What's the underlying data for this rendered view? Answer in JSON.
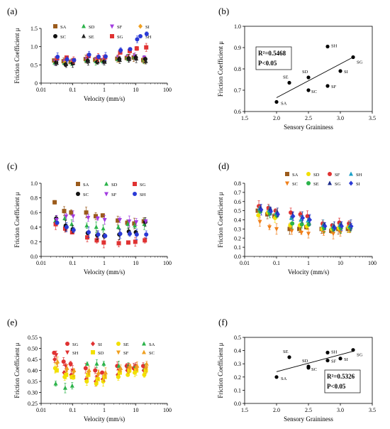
{
  "figure": {
    "panels": [
      "(a)",
      "(b)",
      "(c)",
      "(d)",
      "(e)",
      "(f)"
    ]
  },
  "chart_data": [
    {
      "id": "a",
      "panel_label": "(a)",
      "type": "scatter",
      "xscale": "log",
      "xlabel": "Velocity  (mm/s)",
      "ylabel": "Friction Coefficient μ",
      "xlim": [
        0.01,
        100
      ],
      "ylim": [
        0,
        1.5
      ],
      "xticks": [
        0.01,
        0.1,
        1,
        10,
        100
      ],
      "xtick_labels": [
        "0.01",
        "0.1",
        "1",
        "10",
        "100"
      ],
      "yticks": [
        0,
        0.5,
        1.0,
        1.5
      ],
      "ytick_labels": [
        "0",
        "0.5",
        "1.0",
        "1.5"
      ],
      "x": [
        0.03,
        0.06,
        0.1,
        0.3,
        0.6,
        1,
        3,
        6,
        10,
        20
      ],
      "legend": {
        "columns": 4,
        "position": "top"
      },
      "series": [
        {
          "name": "SA",
          "color": "#9b5b1c",
          "marker": "square",
          "values": [
            0.62,
            0.6,
            0.58,
            0.66,
            0.64,
            0.63,
            0.67,
            0.69,
            0.7,
            0.63
          ]
        },
        {
          "name": "SD",
          "color": "#2bb34a",
          "marker": "triangle-up",
          "values": [
            0.56,
            0.55,
            0.57,
            0.62,
            0.6,
            0.6,
            0.65,
            0.7,
            0.71,
            0.64
          ]
        },
        {
          "name": "SF",
          "color": "#a23be0",
          "marker": "triangle-down",
          "values": [
            0.6,
            0.59,
            0.6,
            0.66,
            0.65,
            0.64,
            0.7,
            0.73,
            0.74,
            0.7
          ]
        },
        {
          "name": "SI",
          "color": "#f0a020",
          "marker": "diamond",
          "values": [
            0.58,
            0.57,
            0.59,
            0.63,
            0.62,
            0.62,
            0.68,
            0.7,
            0.69,
            0.62
          ]
        },
        {
          "name": "SC",
          "color": "#111111",
          "marker": "circle",
          "values": [
            0.57,
            0.51,
            0.54,
            0.61,
            0.58,
            0.59,
            0.66,
            0.68,
            0.7,
            0.66
          ]
        },
        {
          "name": "SE",
          "color": "#222222",
          "marker": "triangle-up",
          "values": [
            0.55,
            0.52,
            0.55,
            0.6,
            0.59,
            0.58,
            0.63,
            0.66,
            0.67,
            0.6
          ]
        },
        {
          "name": "SG",
          "color": "#e03232",
          "marker": "square",
          "values": [
            0.68,
            0.7,
            0.63,
            0.75,
            0.7,
            0.71,
            0.84,
            0.88,
            0.95,
            0.98
          ]
        },
        {
          "name": "SH",
          "color": "#2a3ad6",
          "marker": "circle",
          "values": [
            0.72,
            0.65,
            0.63,
            0.78,
            0.72,
            0.73,
            0.9,
            0.93,
            1.2,
            1.35
          ]
        }
      ]
    },
    {
      "id": "b",
      "panel_label": "(b)",
      "type": "scatter",
      "xlabel": "Sensory Graininess",
      "ylabel": "Friction Coefficient μ",
      "xlim": [
        1.5,
        3.5
      ],
      "ylim": [
        0.6,
        1.0
      ],
      "xticks": [
        1.5,
        2.0,
        2.5,
        3.0,
        3.5
      ],
      "xtick_labels": [
        "1.5",
        "2.0",
        "2.5",
        "3.0",
        "3.5"
      ],
      "yticks": [
        0.6,
        0.7,
        0.8,
        0.9,
        1.0
      ],
      "ytick_labels": [
        "0.6",
        "0.7",
        "0.8",
        "0.9",
        "1.0"
      ],
      "points": [
        {
          "label": "SA",
          "x": 2.0,
          "y": 0.645
        },
        {
          "label": "SE",
          "x": 2.2,
          "y": 0.735
        },
        {
          "label": "SD",
          "x": 2.5,
          "y": 0.76
        },
        {
          "label": "SC",
          "x": 2.5,
          "y": 0.7
        },
        {
          "label": "SH",
          "x": 2.8,
          "y": 0.905
        },
        {
          "label": "SF",
          "x": 2.8,
          "y": 0.72
        },
        {
          "label": "SI",
          "x": 3.0,
          "y": 0.79
        },
        {
          "label": "SG",
          "x": 3.2,
          "y": 0.855
        }
      ],
      "fit_line": {
        "x": [
          2.0,
          3.2
        ],
        "y": [
          0.665,
          0.855
        ]
      },
      "annotation": {
        "r2_label": "R²=0.5468",
        "p_label": "P<0.05"
      }
    },
    {
      "id": "c",
      "panel_label": "(c)",
      "type": "scatter",
      "xscale": "log",
      "xlabel": "Velocity  (mm/s)",
      "ylabel": "Friction Coefficient μ",
      "xlim": [
        0.01,
        100
      ],
      "ylim": [
        0.0,
        1.0
      ],
      "xticks": [
        0.01,
        0.1,
        1,
        10,
        100
      ],
      "xtick_labels": [
        "0.01",
        "0.1",
        "1",
        "10",
        "100"
      ],
      "yticks": [
        0.0,
        0.2,
        0.4,
        0.6,
        0.8,
        1.0
      ],
      "ytick_labels": [
        "0.0",
        "0.2",
        "0.4",
        "0.6",
        "0.8",
        "1.0"
      ],
      "x": [
        0.03,
        0.06,
        0.1,
        0.3,
        0.6,
        1,
        3,
        6,
        10,
        20
      ],
      "legend": {
        "columns": 3,
        "position": "top"
      },
      "series": [
        {
          "name": "SA",
          "color": "#9b5b1c",
          "marker": "square",
          "values": [
            0.74,
            0.62,
            0.6,
            0.6,
            0.55,
            0.56,
            0.49,
            0.46,
            0.45,
            0.48
          ]
        },
        {
          "name": "SD",
          "color": "#2bb34a",
          "marker": "triangle-up",
          "values": [
            0.48,
            0.52,
            0.44,
            0.42,
            0.4,
            0.38,
            0.4,
            0.44,
            0.42,
            0.44
          ]
        },
        {
          "name": "SG",
          "color": "#e03232",
          "marker": "square",
          "values": [
            0.44,
            0.38,
            0.33,
            0.26,
            0.22,
            0.19,
            0.18,
            0.19,
            0.2,
            0.22
          ]
        },
        {
          "name": "SC",
          "color": "#111111",
          "marker": "circle",
          "values": [
            0.52,
            0.42,
            0.37,
            0.32,
            0.29,
            0.28,
            0.3,
            0.34,
            0.33,
            0.47
          ]
        },
        {
          "name": "SF",
          "color": "#a23be0",
          "marker": "triangle-down",
          "values": [
            0.5,
            0.55,
            0.55,
            0.53,
            0.52,
            0.5,
            0.5,
            0.48,
            0.47,
            0.48
          ]
        },
        {
          "name": "SH",
          "color": "#2a3ad6",
          "marker": "circle",
          "values": [
            0.46,
            0.4,
            0.36,
            0.33,
            0.3,
            0.28,
            0.31,
            0.31,
            0.3,
            0.3
          ]
        }
      ]
    },
    {
      "id": "d",
      "panel_label": "(d)",
      "type": "scatter",
      "xscale": "log",
      "xlabel": "Velocity  (mm/s)",
      "ylabel": "Friction Coefficient μ",
      "xlim": [
        0.01,
        100
      ],
      "ylim": [
        0.0,
        0.8
      ],
      "xticks": [
        0.01,
        0.1,
        1,
        10,
        100
      ],
      "xtick_labels": [
        "0.01",
        "0.1",
        "1",
        "10",
        "100"
      ],
      "yticks": [
        0.0,
        0.1,
        0.2,
        0.3,
        0.4,
        0.5,
        0.6,
        0.7,
        0.8
      ],
      "ytick_labels": [
        "0.0",
        "0.1",
        "0.2",
        "0.3",
        "0.4",
        "0.5",
        "0.6",
        "0.7",
        "0.8"
      ],
      "x": [
        0.03,
        0.06,
        0.1,
        0.3,
        0.6,
        1,
        3,
        6,
        10,
        20
      ],
      "legend": {
        "columns": 4,
        "position": "top"
      },
      "series": [
        {
          "name": "SA",
          "color": "#9b5b1c",
          "marker": "square",
          "values": [
            0.5,
            0.46,
            0.44,
            0.3,
            0.3,
            0.32,
            0.3,
            0.28,
            0.3,
            0.3
          ]
        },
        {
          "name": "SD",
          "color": "#f2e000",
          "marker": "circle",
          "values": [
            0.45,
            0.48,
            0.42,
            0.34,
            0.34,
            0.33,
            0.3,
            0.3,
            0.31,
            0.32
          ]
        },
        {
          "name": "SF",
          "color": "#e03232",
          "marker": "circle",
          "values": [
            0.55,
            0.53,
            0.5,
            0.48,
            0.46,
            0.44,
            0.36,
            0.34,
            0.37,
            0.36
          ]
        },
        {
          "name": "SH",
          "color": "#1aa0c8",
          "marker": "triangle-up",
          "values": [
            0.52,
            0.5,
            0.47,
            0.42,
            0.4,
            0.39,
            0.34,
            0.32,
            0.34,
            0.33
          ]
        },
        {
          "name": "SC",
          "color": "#f07f1a",
          "marker": "triangle-down",
          "values": [
            0.38,
            0.32,
            0.3,
            0.28,
            0.26,
            0.25,
            0.26,
            0.25,
            0.26,
            0.28
          ]
        },
        {
          "name": "SE",
          "color": "#2bb34a",
          "marker": "circle",
          "values": [
            0.49,
            0.47,
            0.45,
            0.36,
            0.35,
            0.35,
            0.31,
            0.3,
            0.31,
            0.31
          ]
        },
        {
          "name": "SG",
          "color": "#1a2a8a",
          "marker": "triangle-up",
          "values": [
            0.53,
            0.52,
            0.48,
            0.45,
            0.43,
            0.41,
            0.35,
            0.33,
            0.35,
            0.34
          ]
        },
        {
          "name": "SI",
          "color": "#2a3ad6",
          "marker": "diamond",
          "values": [
            0.51,
            0.49,
            0.46,
            0.44,
            0.42,
            0.4,
            0.33,
            0.31,
            0.33,
            0.33
          ]
        }
      ]
    },
    {
      "id": "e",
      "panel_label": "(e)",
      "type": "scatter",
      "xscale": "log",
      "xlabel": "Velocity  (mm/s)",
      "ylabel": "Friction Coefficient μ",
      "xlim": [
        0.01,
        100
      ],
      "ylim": [
        0.25,
        0.55
      ],
      "xticks": [
        0.01,
        0.1,
        1,
        10,
        100
      ],
      "xtick_labels": [
        "0.01",
        "0.1",
        "1",
        "10",
        "100"
      ],
      "yticks": [
        0.25,
        0.3,
        0.35,
        0.4,
        0.45,
        0.5,
        0.55
      ],
      "ytick_labels": [
        "0.25",
        "0.30",
        "0.35",
        "0.40",
        "0.45",
        "0.50",
        "0.55"
      ],
      "x": [
        0.03,
        0.06,
        0.1,
        0.3,
        0.6,
        1,
        3,
        6,
        10,
        20
      ],
      "legend": {
        "columns": 4,
        "position": "top"
      },
      "series": [
        {
          "name": "SG",
          "color": "#e03232",
          "marker": "circle",
          "values": [
            0.48,
            0.44,
            0.43,
            0.41,
            0.4,
            0.39,
            0.42,
            0.42,
            0.41,
            0.42
          ]
        },
        {
          "name": "SI",
          "color": "#e03232",
          "marker": "diamond",
          "values": [
            0.45,
            0.39,
            0.38,
            0.36,
            0.35,
            0.36,
            0.38,
            0.4,
            0.41,
            0.4
          ]
        },
        {
          "name": "SE",
          "color": "#f2e000",
          "marker": "circle",
          "values": [
            0.41,
            0.37,
            0.37,
            0.35,
            0.34,
            0.35,
            0.37,
            0.38,
            0.39,
            0.38
          ]
        },
        {
          "name": "SA",
          "color": "#2bb34a",
          "marker": "triangle-up",
          "values": [
            0.34,
            0.32,
            0.33,
            0.43,
            0.43,
            0.43,
            0.42,
            0.42,
            0.42,
            0.41
          ]
        },
        {
          "name": "SH",
          "color": "#e03232",
          "marker": "triangle-down",
          "values": [
            0.47,
            0.42,
            0.4,
            0.38,
            0.37,
            0.37,
            0.4,
            0.41,
            0.42,
            0.41
          ]
        },
        {
          "name": "SD",
          "color": "#f2e000",
          "marker": "square",
          "values": [
            0.4,
            0.38,
            0.37,
            0.38,
            0.36,
            0.37,
            0.39,
            0.4,
            0.4,
            0.4
          ]
        },
        {
          "name": "SF",
          "color": "#f0a020",
          "marker": "triangle-down",
          "values": [
            0.43,
            0.4,
            0.39,
            0.39,
            0.38,
            0.38,
            0.4,
            0.41,
            0.41,
            0.41
          ]
        },
        {
          "name": "SC",
          "color": "#f0a020",
          "marker": "triangle-up",
          "values": [
            0.44,
            0.41,
            0.4,
            0.4,
            0.39,
            0.39,
            0.41,
            0.42,
            0.42,
            0.43
          ]
        }
      ]
    },
    {
      "id": "f",
      "panel_label": "(f)",
      "type": "scatter",
      "xlabel": "Sensory Graininess",
      "ylabel": "Friction Coefficient μ",
      "xlim": [
        1.5,
        3.5
      ],
      "ylim": [
        0.0,
        0.5
      ],
      "xticks": [
        1.5,
        2.0,
        2.5,
        3.0,
        3.5
      ],
      "xtick_labels": [
        "1.5",
        "2.0",
        "2.5",
        "3.0",
        "3.5"
      ],
      "yticks": [
        0.0,
        0.1,
        0.2,
        0.3,
        0.4,
        0.5
      ],
      "ytick_labels": [
        "0.0",
        "0.1",
        "0.2",
        "0.3",
        "0.4",
        "0.5"
      ],
      "points": [
        {
          "label": "SA",
          "x": 2.0,
          "y": 0.2
        },
        {
          "label": "SE",
          "x": 2.2,
          "y": 0.35
        },
        {
          "label": "SD",
          "x": 2.5,
          "y": 0.28
        },
        {
          "label": "SC",
          "x": 2.5,
          "y": 0.27
        },
        {
          "label": "SH",
          "x": 2.8,
          "y": 0.385
        },
        {
          "label": "SF",
          "x": 2.8,
          "y": 0.325
        },
        {
          "label": "SI",
          "x": 3.0,
          "y": 0.34
        },
        {
          "label": "SG",
          "x": 3.2,
          "y": 0.405
        }
      ],
      "fit_line": {
        "x": [
          2.0,
          3.2
        ],
        "y": [
          0.24,
          0.395
        ]
      },
      "annotation": {
        "r2_label": "R²=0.5326",
        "p_label": "P<0.05"
      }
    }
  ]
}
